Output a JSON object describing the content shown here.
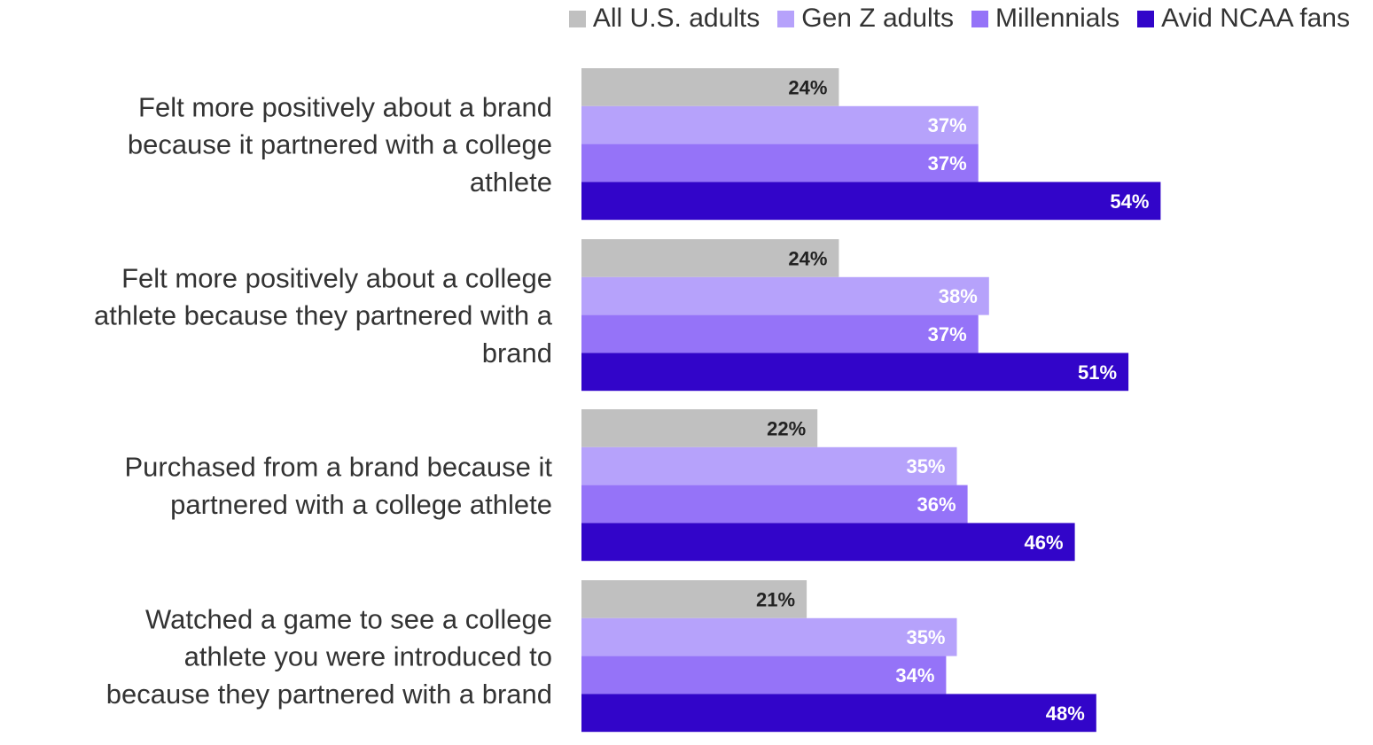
{
  "chart_data": {
    "type": "bar",
    "orientation": "horizontal",
    "categories": [
      "Felt more positively about a brand because it partnered with a college athlete",
      "Felt more positively about a college athlete because they partnered with a brand",
      "Purchased from a brand because it partnered with a college athlete",
      "Watched a game to see a college athlete you were introduced to because they partnered with a brand"
    ],
    "category_lines": [
      [
        "Felt more positively about a brand",
        "because it partnered with a college",
        "athlete"
      ],
      [
        "Felt more positively about a college",
        "athlete because they partnered with a",
        "brand"
      ],
      [
        "Purchased from a brand because it",
        "partnered with a college athlete"
      ],
      [
        "Watched a game to see a college",
        "athlete you were introduced to",
        "because they partnered with a brand"
      ]
    ],
    "series": [
      {
        "name": "All U.S. adults",
        "color": "#c0c0c0",
        "label_color": "#222222",
        "values": [
          24,
          24,
          22,
          21
        ]
      },
      {
        "name": "Gen Z adults",
        "color": "#b6a2fb",
        "label_color": "#ffffff",
        "values": [
          37,
          38,
          35,
          35
        ]
      },
      {
        "name": "Millennials",
        "color": "#9573f8",
        "label_color": "#ffffff",
        "values": [
          37,
          37,
          36,
          34
        ]
      },
      {
        "name": "Avid NCAA fans",
        "color": "#3205c9",
        "label_color": "#ffffff",
        "values": [
          54,
          51,
          46,
          48
        ]
      }
    ],
    "value_suffix": "%",
    "legend_position": "top-right",
    "grid": false,
    "xlim": [
      0,
      73
    ]
  }
}
